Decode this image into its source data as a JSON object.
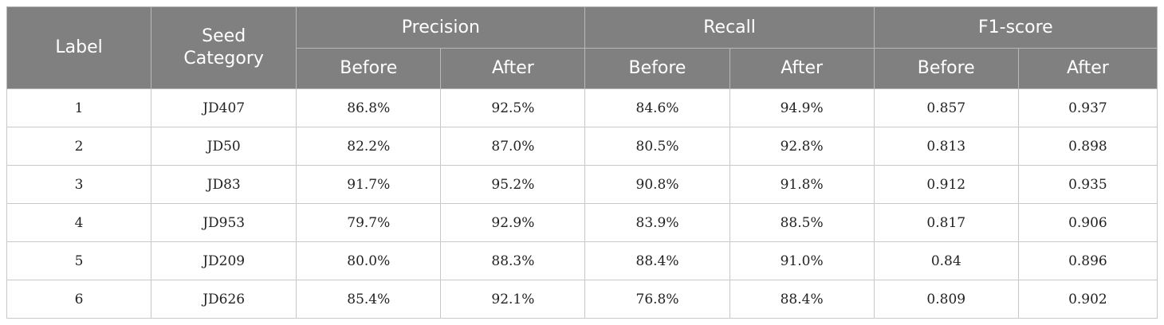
{
  "table": {
    "headers": {
      "label": "Label",
      "seed_category_line1": "Seed",
      "seed_category_line2": "Category",
      "groups": [
        "Precision",
        "Recall",
        "F1-score"
      ],
      "subheaders": [
        "Before",
        "After",
        "Before",
        "After",
        "Before",
        "After"
      ]
    },
    "rows": [
      {
        "label": "1",
        "seed": "JD407",
        "values": [
          "86.8%",
          "92.5%",
          "84.6%",
          "94.9%",
          "0.857",
          "0.937"
        ]
      },
      {
        "label": "2",
        "seed": "JD50",
        "values": [
          "82.2%",
          "87.0%",
          "80.5%",
          "92.8%",
          "0.813",
          "0.898"
        ]
      },
      {
        "label": "3",
        "seed": "JD83",
        "values": [
          "91.7%",
          "95.2%",
          "90.8%",
          "91.8%",
          "0.912",
          "0.935"
        ]
      },
      {
        "label": "4",
        "seed": "JD953",
        "values": [
          "79.7%",
          "92.9%",
          "83.9%",
          "88.5%",
          "0.817",
          "0.906"
        ]
      },
      {
        "label": "5",
        "seed": "JD209",
        "values": [
          "80.0%",
          "88.3%",
          "88.4%",
          "91.0%",
          "0.84",
          "0.896"
        ]
      },
      {
        "label": "6",
        "seed": "JD626",
        "values": [
          "85.4%",
          "92.1%",
          "76.8%",
          "88.4%",
          "0.809",
          "0.902"
        ]
      }
    ]
  }
}
